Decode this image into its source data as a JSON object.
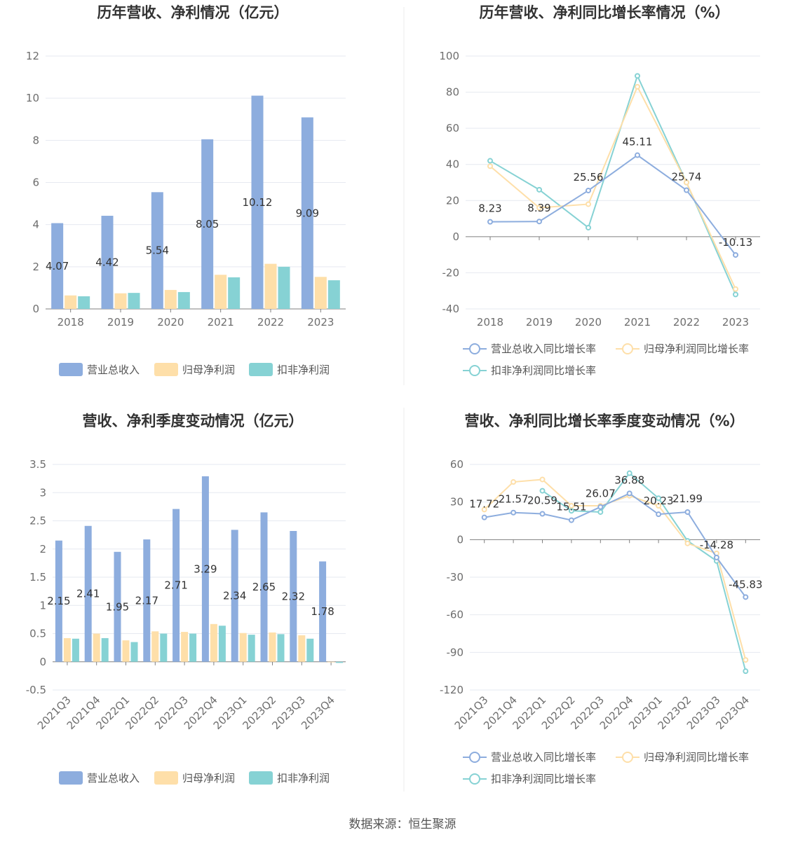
{
  "footer": {
    "source": "数据来源：恒生聚源"
  },
  "colors": {
    "revenue": "#8dadde",
    "net_profit": "#fedfa9",
    "deducted_profit": "#86d2d4",
    "grid": "#e6e9f0",
    "axis": "#7f7f7f"
  },
  "chart_data": [
    {
      "id": "annual-bars",
      "type": "bar",
      "title": "历年营收、净利情况（亿元）",
      "categories": [
        "2018",
        "2019",
        "2020",
        "2021",
        "2022",
        "2023"
      ],
      "series": [
        {
          "name": "营业总收入",
          "values": [
            4.07,
            4.42,
            5.54,
            8.05,
            10.12,
            9.09
          ],
          "labels": [
            "4.07",
            "4.42",
            "5.54",
            "8.05",
            "10.12",
            "9.09"
          ]
        },
        {
          "name": "归母净利润",
          "values": [
            0.64,
            0.74,
            0.9,
            1.62,
            2.14,
            1.52
          ]
        },
        {
          "name": "扣非净利润",
          "values": [
            0.6,
            0.76,
            0.8,
            1.5,
            2.0,
            1.36
          ]
        }
      ],
      "ylim": [
        0,
        12
      ],
      "yticks": [
        0,
        2,
        4,
        6,
        8,
        10,
        12
      ],
      "ytick_labels": [
        "0",
        "2",
        "4",
        "6",
        "8",
        "10",
        "12"
      ],
      "legend": "bottom",
      "grid": true
    },
    {
      "id": "annual-growth",
      "type": "line",
      "title": "历年营收、净利同比增长率情况（%）",
      "categories": [
        "2018",
        "2019",
        "2020",
        "2021",
        "2022",
        "2023"
      ],
      "series": [
        {
          "name": "营业总收入同比增长率",
          "values": [
            8.23,
            8.39,
            25.56,
            45.11,
            25.74,
            -10.13
          ],
          "labels": [
            "8.23",
            "8.39",
            "25.56",
            "45.11",
            "25.74",
            "-10.13"
          ]
        },
        {
          "name": "归母净利润同比增长率",
          "values": [
            39,
            16,
            18,
            83,
            30,
            -29
          ]
        },
        {
          "name": "扣非净利润同比增长率",
          "values": [
            42,
            26,
            5,
            89,
            30,
            -32
          ]
        }
      ],
      "ylim": [
        -40,
        100
      ],
      "yticks": [
        -40,
        -20,
        0,
        20,
        40,
        60,
        80,
        100
      ],
      "ytick_labels": [
        "-40",
        "-20",
        "0",
        "20",
        "40",
        "60",
        "80",
        "100"
      ],
      "legend": "bottom",
      "grid": true
    },
    {
      "id": "quarterly-bars",
      "type": "bar",
      "title": "营收、净利季度变动情况（亿元）",
      "categories": [
        "2021Q3",
        "2021Q4",
        "2022Q1",
        "2022Q2",
        "2022Q3",
        "2022Q4",
        "2023Q1",
        "2023Q2",
        "2023Q3",
        "2023Q4"
      ],
      "series": [
        {
          "name": "营业总收入",
          "values": [
            2.15,
            2.41,
            1.95,
            2.17,
            2.71,
            3.29,
            2.34,
            2.65,
            2.32,
            1.78
          ],
          "labels": [
            "2.15",
            "2.41",
            "1.95",
            "2.17",
            "2.71",
            "3.29",
            "2.34",
            "2.65",
            "2.32",
            "1.78"
          ]
        },
        {
          "name": "归母净利润",
          "values": [
            0.42,
            0.5,
            0.38,
            0.54,
            0.53,
            0.67,
            0.51,
            0.52,
            0.47,
            -0.01
          ]
        },
        {
          "name": "扣非净利润",
          "values": [
            0.41,
            0.42,
            0.35,
            0.5,
            0.5,
            0.64,
            0.48,
            0.49,
            0.41,
            -0.02
          ]
        }
      ],
      "ylim": [
        -0.5,
        3.5
      ],
      "yticks": [
        -0.5,
        0,
        0.5,
        1,
        1.5,
        2,
        2.5,
        3,
        3.5
      ],
      "ytick_labels": [
        "-0.5",
        "0",
        "0.5",
        "1",
        "1.5",
        "2",
        "2.5",
        "3",
        "3.5"
      ],
      "legend": "bottom",
      "grid": true
    },
    {
      "id": "quarterly-growth",
      "type": "line",
      "title": "营收、净利同比增长率季度变动情况（%）",
      "categories": [
        "2021Q3",
        "2021Q4",
        "2022Q1",
        "2022Q2",
        "2022Q3",
        "2022Q4",
        "2023Q1",
        "2023Q2",
        "2023Q3",
        "2023Q4"
      ],
      "series": [
        {
          "name": "营业总收入同比增长率",
          "values": [
            17.72,
            21.57,
            20.59,
            15.51,
            26.07,
            36.88,
            20.23,
            21.99,
            -14.28,
            -45.83
          ],
          "labels": [
            "17.72",
            "21.57",
            "20.59",
            "15.51",
            "26.07",
            "36.88",
            "20.23",
            "21.99",
            "-14.28",
            "-45.83"
          ]
        },
        {
          "name": "归母净利润同比增长率",
          "values": [
            24,
            46,
            48,
            27,
            27,
            35,
            27,
            -3,
            -11,
            -96
          ]
        },
        {
          "name": "扣非净利润同比增长率",
          "values": [
            null,
            null,
            39,
            23,
            22,
            53,
            33,
            -1,
            -17,
            -105
          ]
        }
      ],
      "ylim": [
        -120,
        60
      ],
      "yticks": [
        -120,
        -90,
        -60,
        -30,
        0,
        30,
        60
      ],
      "ytick_labels": [
        "-120",
        "-90",
        "-60",
        "-30",
        "0",
        "30",
        "60"
      ],
      "legend": "bottom",
      "grid": true
    }
  ]
}
